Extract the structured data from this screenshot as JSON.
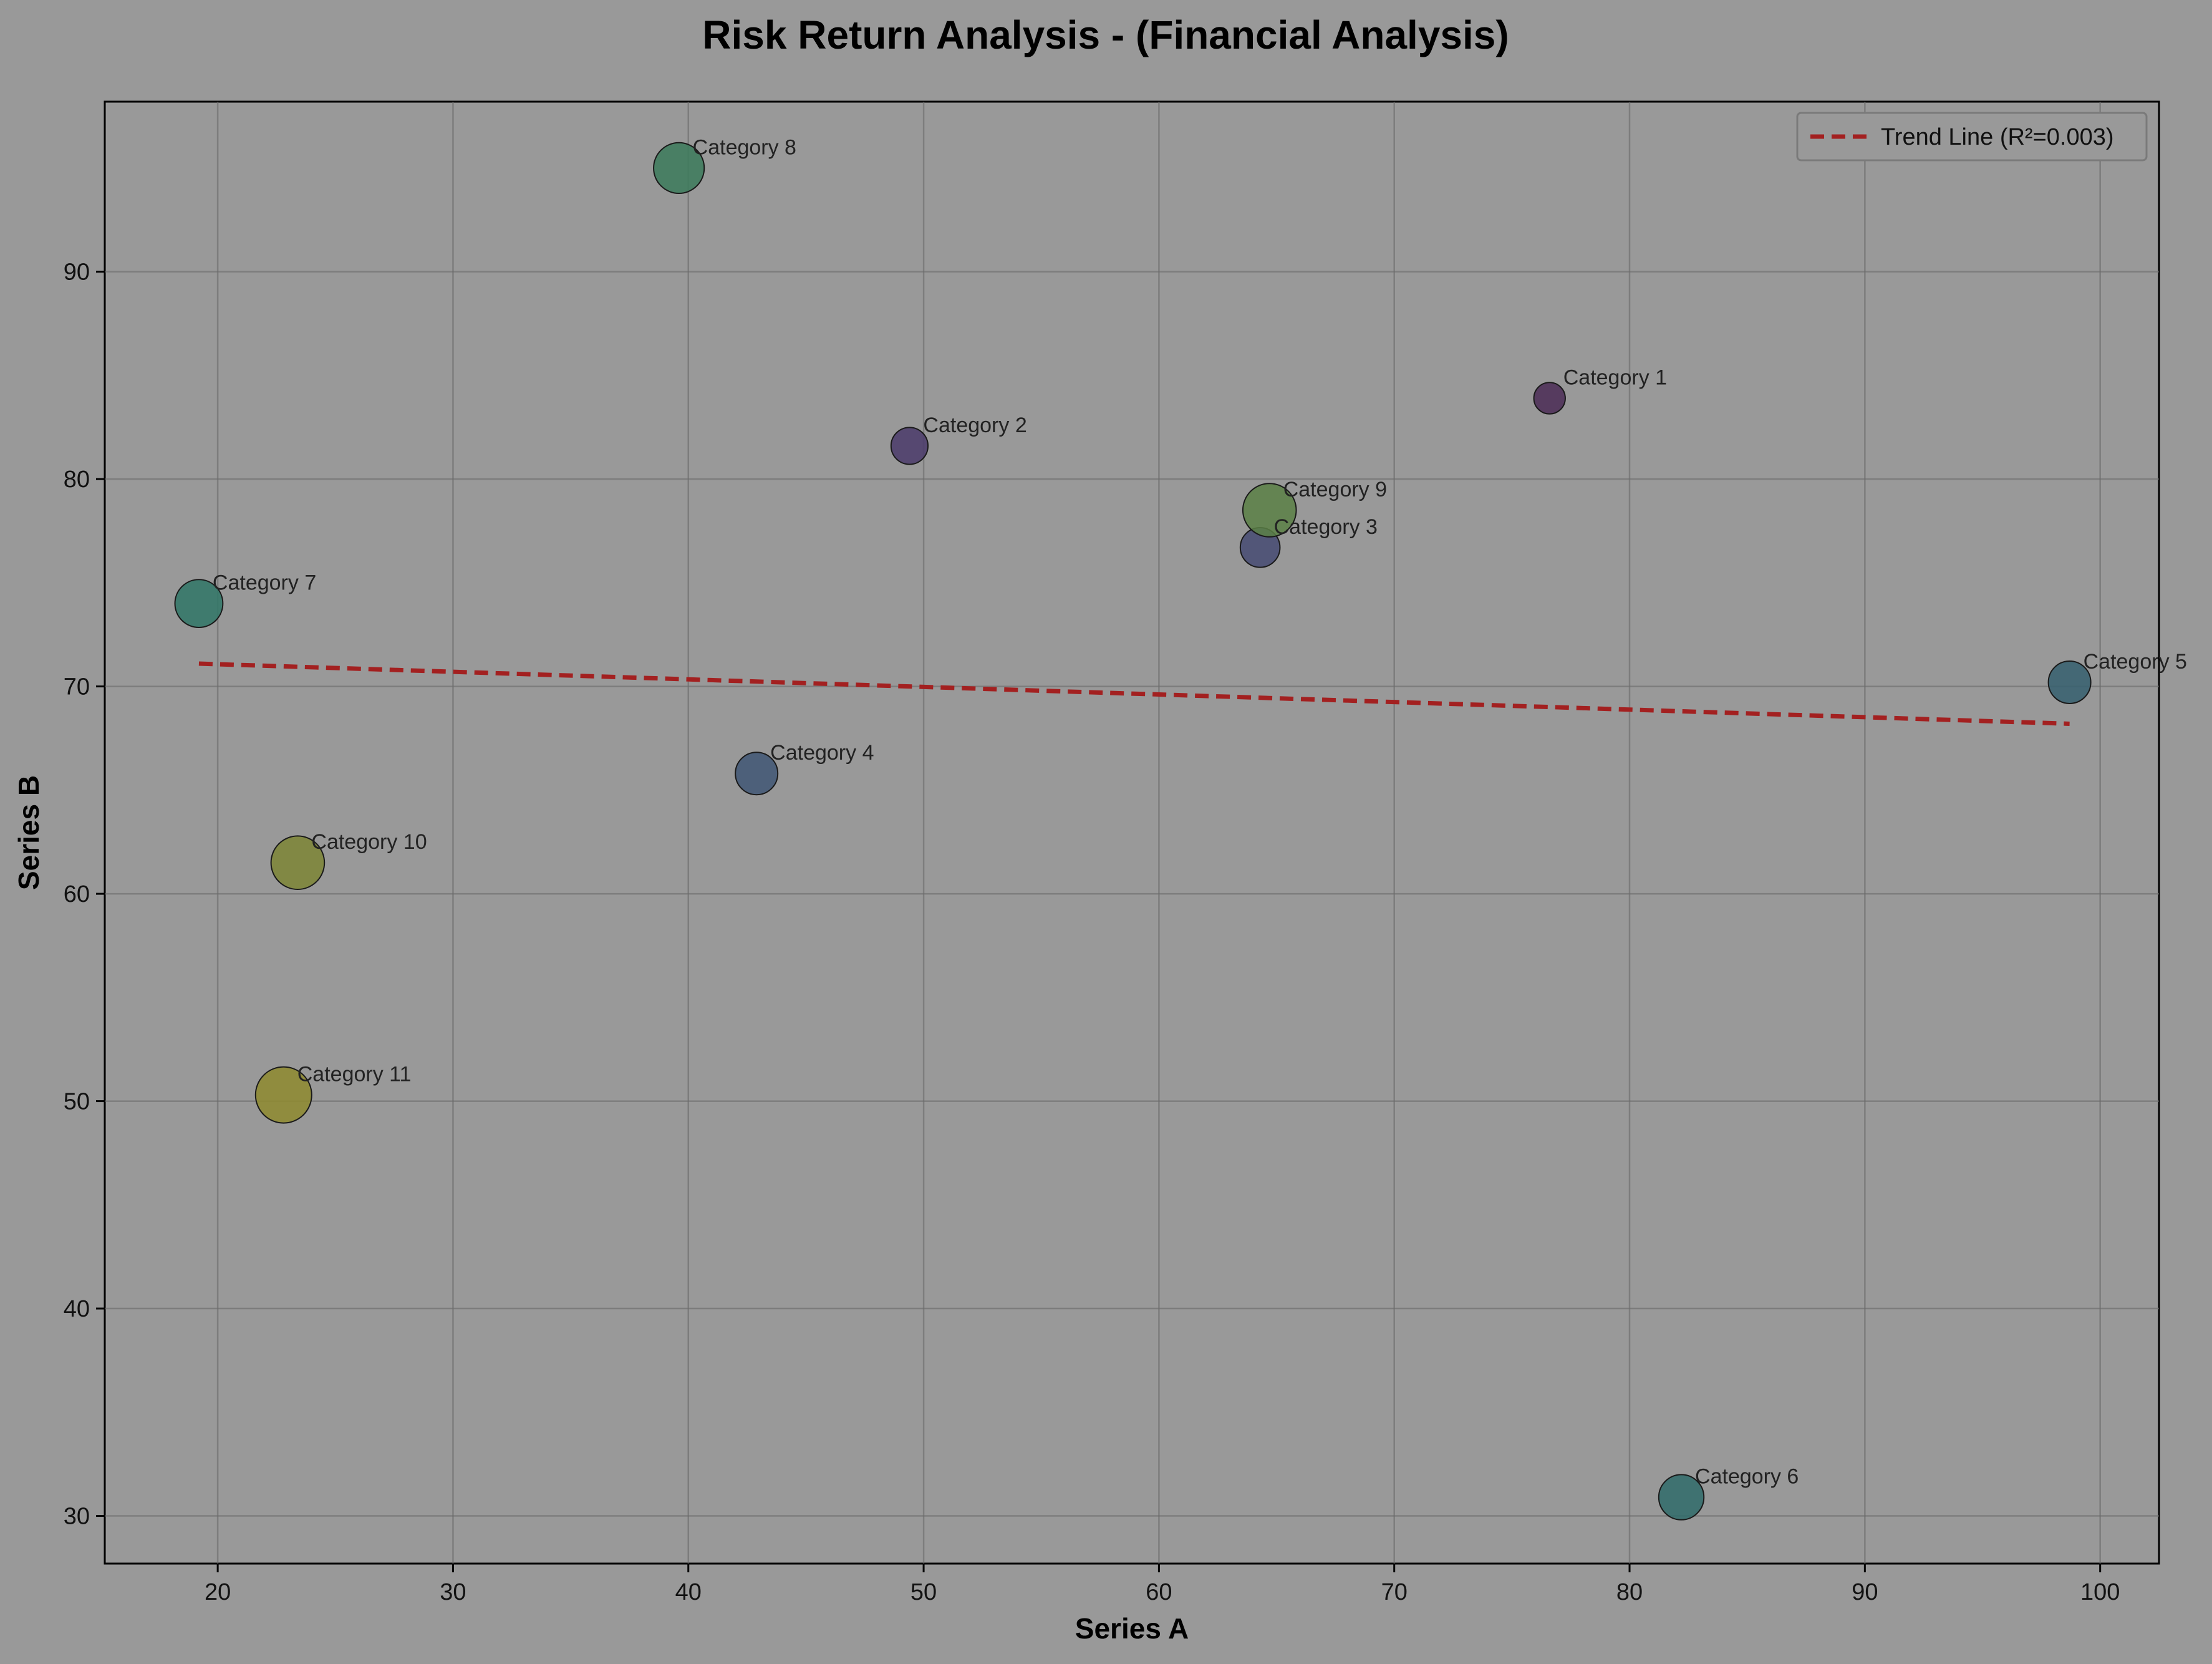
{
  "chart_data": {
    "type": "scatter",
    "title": "Risk Return Analysis - (Financial Analysis)",
    "xlabel": "Series A",
    "ylabel": "Series B",
    "xlim": [
      15.2,
      102.5
    ],
    "ylim": [
      27.7,
      98.2
    ],
    "xticks": [
      20,
      30,
      40,
      50,
      60,
      70,
      80,
      90,
      100
    ],
    "yticks": [
      30,
      40,
      50,
      60,
      70,
      80,
      90
    ],
    "grid": true,
    "legend_position": "top-right",
    "points": [
      {
        "label": "Category 1",
        "x": 76.6,
        "y": 83.9,
        "size": 6,
        "color": "#4a2a55"
      },
      {
        "label": "Category 2",
        "x": 49.4,
        "y": 81.6,
        "size": 8,
        "color": "#4a3a6a"
      },
      {
        "label": "Category 3",
        "x": 64.3,
        "y": 76.7,
        "size": 9,
        "color": "#454a72"
      },
      {
        "label": "Category 4",
        "x": 42.9,
        "y": 65.8,
        "size": 10,
        "color": "#3f5674"
      },
      {
        "label": "Category 5",
        "x": 98.7,
        "y": 70.2,
        "size": 10,
        "color": "#355f6e"
      },
      {
        "label": "Category 6",
        "x": 82.2,
        "y": 30.9,
        "size": 11,
        "color": "#2f6b6a"
      },
      {
        "label": "Category 7",
        "x": 19.2,
        "y": 74.0,
        "size": 12,
        "color": "#2f7566"
      },
      {
        "label": "Category 8",
        "x": 39.6,
        "y": 95.0,
        "size": 13,
        "color": "#3b7a5a"
      },
      {
        "label": "Category 9",
        "x": 64.7,
        "y": 78.5,
        "size": 14,
        "color": "#5a8045"
      },
      {
        "label": "Category 10",
        "x": 23.4,
        "y": 61.5,
        "size": 14,
        "color": "#7c8535"
      },
      {
        "label": "Category 11",
        "x": 22.8,
        "y": 50.3,
        "size": 15,
        "color": "#8e8a2e"
      }
    ],
    "trend_line": {
      "label": "Trend Line (R²=0.003)",
      "color": "#a32020",
      "x": [
        19.2,
        98.7
      ],
      "y": [
        71.1,
        68.2
      ]
    }
  }
}
